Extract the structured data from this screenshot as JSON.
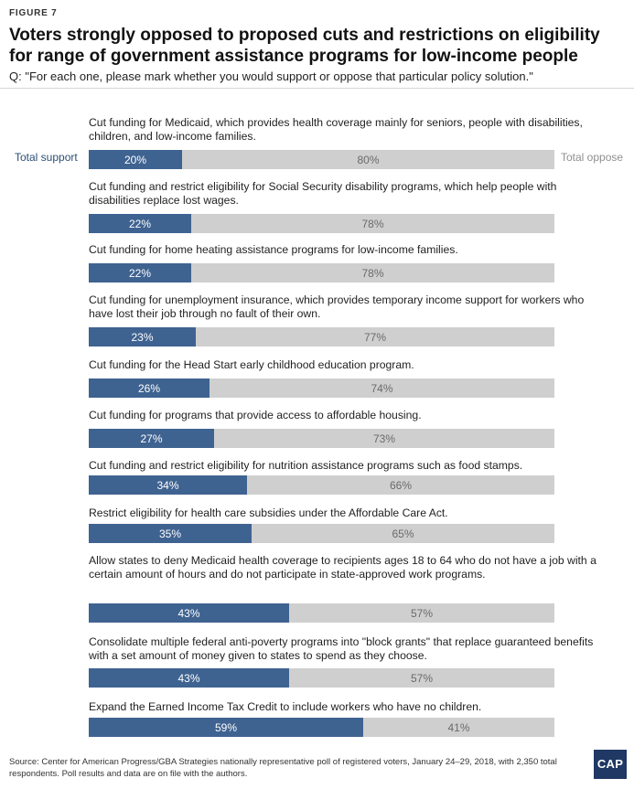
{
  "figure_label": "FIGURE 7",
  "title": "Voters strongly opposed to proposed cuts and restrictions on eligibility for range of government assistance programs for low-income people",
  "subtitle": "Q: \"For each one, please mark whether you would support or oppose that particular policy solution.\"",
  "legend": {
    "support": "Total support",
    "oppose": "Total oppose"
  },
  "source": "Source: Center for American Progress/GBA Strategies nationally representative poll of registered voters, January 24–29, 2018, with 2,350 total respondents. Poll results and data are on file with the authors.",
  "logo_text": "CAP",
  "colors": {
    "support": "#3f6391",
    "oppose": "#cfcfcf"
  },
  "chart_data": {
    "type": "bar",
    "orientation": "horizontal-stacked",
    "unit": "%",
    "categories": [
      "Cut funding for Medicaid, which provides health coverage mainly for seniors, people with disabilities, children, and low-income families.",
      "Cut funding and restrict eligibility for Social Security disability programs, which help people with disabilities replace lost wages.",
      "Cut funding for home heating assistance programs for low-income families.",
      "Cut funding for unemployment insurance, which provides temporary income support for workers who have lost their job through no fault of their own.",
      "Cut funding for the Head Start early childhood education program.",
      "Cut funding for programs that provide access to affordable housing.",
      "Cut funding and restrict eligibility for nutrition assistance programs such as food stamps.",
      "Restrict eligibility for health care subsidies under the Affordable Care Act.",
      "Allow states to deny Medicaid health coverage to recipients ages 18 to 64 who do not have a job with a certain amount of hours and do not participate in state-approved work programs.",
      "Consolidate multiple federal anti-poverty programs into \"block grants\" that replace guaranteed benefits with a set amount of money given to states to spend as they choose.",
      "Expand the Earned Income Tax Credit to include workers who have no children."
    ],
    "series": [
      {
        "name": "Total support",
        "values": [
          20,
          22,
          22,
          23,
          26,
          27,
          34,
          35,
          43,
          43,
          59
        ]
      },
      {
        "name": "Total oppose",
        "values": [
          80,
          78,
          78,
          77,
          74,
          73,
          66,
          65,
          57,
          57,
          41
        ]
      }
    ],
    "xlim": [
      0,
      100
    ],
    "legend": "sides"
  }
}
